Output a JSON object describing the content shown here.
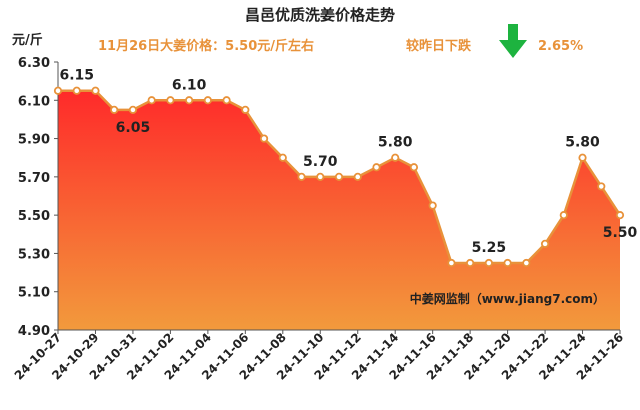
{
  "chart_data": {
    "type": "area",
    "title": "昌邑优质洗姜价格走势",
    "ylabel": "元/斤",
    "ylim": [
      4.9,
      6.3
    ],
    "yticks": [
      "4.90",
      "5.10",
      "5.30",
      "5.50",
      "5.70",
      "5.90",
      "6.10",
      "6.30"
    ],
    "xtick_labels": [
      "24-10-27",
      "24-10-29",
      "24-10-31",
      "24-11-02",
      "24-11-04",
      "24-11-06",
      "24-11-08",
      "24-11-10",
      "24-11-12",
      "24-11-14",
      "24-11-16",
      "24-11-18",
      "24-11-20",
      "24-11-22",
      "24-11-24",
      "24-11-26"
    ],
    "x": [
      "24-10-27",
      "24-10-28",
      "24-10-29",
      "24-10-30",
      "24-10-31",
      "24-11-01",
      "24-11-02",
      "24-11-03",
      "24-11-04",
      "24-11-05",
      "24-11-06",
      "24-11-07",
      "24-11-08",
      "24-11-09",
      "24-11-10",
      "24-11-11",
      "24-11-12",
      "24-11-13",
      "24-11-14",
      "24-11-15",
      "24-11-16",
      "24-11-17",
      "24-11-18",
      "24-11-19",
      "24-11-20",
      "24-11-21",
      "24-11-22",
      "24-11-23",
      "24-11-24",
      "24-11-25",
      "24-11-26"
    ],
    "values": [
      6.15,
      6.15,
      6.15,
      6.05,
      6.05,
      6.1,
      6.1,
      6.1,
      6.1,
      6.1,
      6.05,
      5.9,
      5.8,
      5.7,
      5.7,
      5.7,
      5.7,
      5.75,
      5.8,
      5.75,
      5.55,
      5.25,
      5.25,
      5.25,
      5.25,
      5.25,
      5.35,
      5.5,
      5.8,
      5.65,
      5.5
    ],
    "data_labels": [
      {
        "index": 1,
        "text": "6.15",
        "pos": "above"
      },
      {
        "index": 4,
        "text": "6.05",
        "pos": "below"
      },
      {
        "index": 7,
        "text": "6.10",
        "pos": "above"
      },
      {
        "index": 14,
        "text": "5.70",
        "pos": "above"
      },
      {
        "index": 18,
        "text": "5.80",
        "pos": "above"
      },
      {
        "index": 23,
        "text": "5.25",
        "pos": "above"
      },
      {
        "index": 28,
        "text": "5.80",
        "pos": "above"
      },
      {
        "index": 30,
        "text": "5.50",
        "pos": "below"
      }
    ],
    "colors": {
      "line": "#E8923A",
      "marker_fill": "#ffffff",
      "area_top": "#FF2A2A",
      "area_bottom": "#F29A3C",
      "annotation": "#E8923A",
      "arrow": "#1DB33F",
      "text": "#222222"
    },
    "grid": false,
    "legend": "none"
  },
  "annotations": {
    "price_note": "11月26日大姜价格：5.50元/斤左右",
    "change_note": "较昨日下跌",
    "change_pct": "2.65%",
    "trend_icon": "down-arrow-icon",
    "source": "中姜网监制（www.jiang7.com）"
  }
}
